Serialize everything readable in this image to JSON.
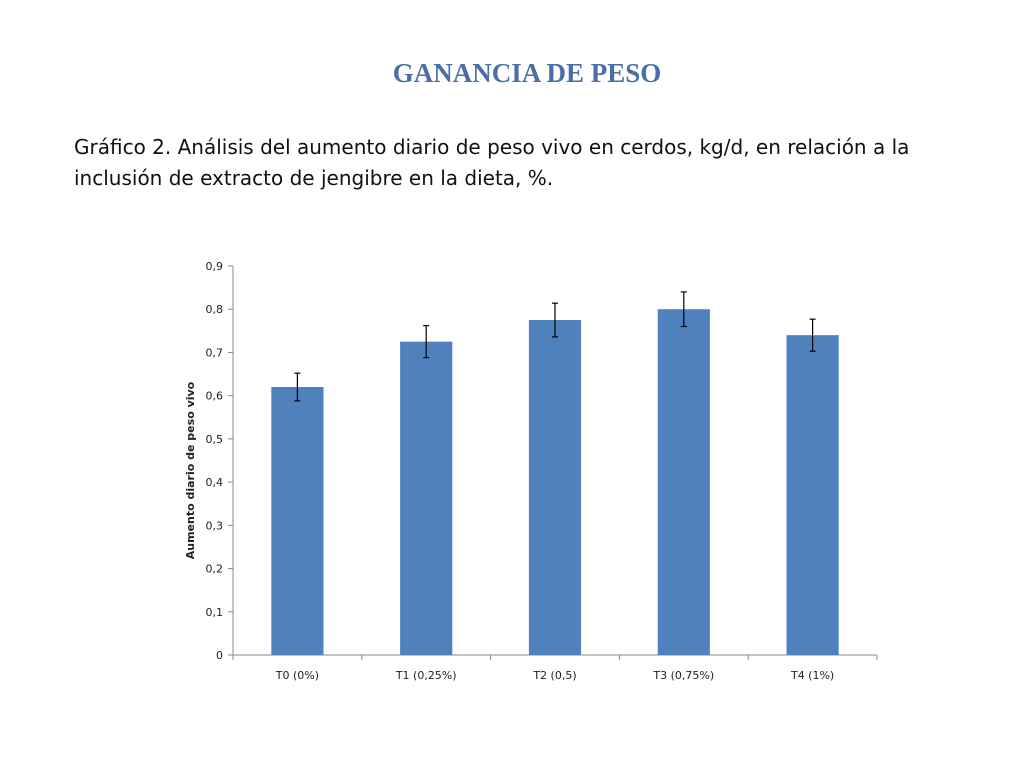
{
  "page": {
    "title": "GANANCIA DE PESO",
    "caption": "Gráfico 2. Análisis del aumento diario de peso vivo en cerdos, kg/d, en relación a la inclusión de extracto de jengibre en la dieta, %."
  },
  "chart_data": {
    "type": "bar",
    "title": "",
    "xlabel": "",
    "ylabel": "Aumento diario de peso vivo",
    "categories": [
      "T0 (0%)",
      "T1 (0,25%)",
      "T2 (0,5)",
      "T3 (0,75%)",
      "T4 (1%)"
    ],
    "values": [
      0.62,
      0.725,
      0.775,
      0.8,
      0.74
    ],
    "error_bars": [
      0.032,
      0.037,
      0.039,
      0.04,
      0.037
    ],
    "ylim": [
      0,
      0.9
    ],
    "yticks": [
      0,
      0.1,
      0.2,
      0.3,
      0.4,
      0.5,
      0.6,
      0.7,
      0.8,
      0.9
    ],
    "ytick_labels": [
      "0",
      "0,1",
      "0,2",
      "0,3",
      "0,4",
      "0,5",
      "0,6",
      "0,7",
      "0,8",
      "0,9"
    ],
    "grid": false,
    "legend": "none",
    "bar_color": "#4f81bd"
  }
}
